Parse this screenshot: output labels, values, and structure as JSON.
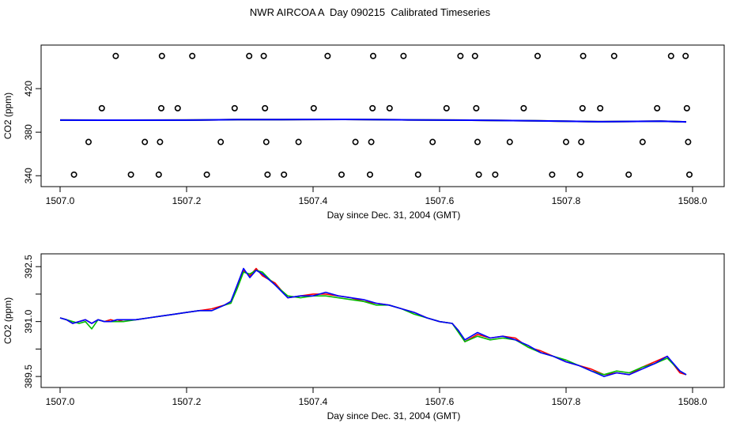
{
  "figure_title": "NWR AIRCOA A  Day 090215  Calibrated Timeseries",
  "chart_data": [
    {
      "type": "scatter+line",
      "xlabel": "Day since Dec. 31, 2004 (GMT)",
      "ylabel": "CO2 (ppm)",
      "xlim": [
        1506.97,
        1508.05
      ],
      "ylim": [
        330,
        460
      ],
      "x_ticks": [
        "1507.0",
        "1507.2",
        "1507.4",
        "1507.6",
        "1507.8",
        "1508.0"
      ],
      "x_tick_values": [
        1507.0,
        1507.2,
        1507.4,
        1507.6,
        1507.8,
        1508.0
      ],
      "y_ticks": [
        "340",
        "380",
        "420"
      ],
      "y_tick_values": [
        340,
        380,
        420
      ],
      "grid": false,
      "marker_color": "#000000",
      "points": [
        {
          "x": 1507.022,
          "y": 341
        },
        {
          "x": 1507.045,
          "y": 371
        },
        {
          "x": 1507.066,
          "y": 402
        },
        {
          "x": 1507.088,
          "y": 450
        },
        {
          "x": 1507.112,
          "y": 341
        },
        {
          "x": 1507.134,
          "y": 371
        },
        {
          "x": 1507.156,
          "y": 341
        },
        {
          "x": 1507.158,
          "y": 371
        },
        {
          "x": 1507.16,
          "y": 402
        },
        {
          "x": 1507.161,
          "y": 450
        },
        {
          "x": 1507.186,
          "y": 402
        },
        {
          "x": 1507.209,
          "y": 450
        },
        {
          "x": 1507.232,
          "y": 341
        },
        {
          "x": 1507.254,
          "y": 371
        },
        {
          "x": 1507.276,
          "y": 402
        },
        {
          "x": 1507.299,
          "y": 450
        },
        {
          "x": 1507.322,
          "y": 450
        },
        {
          "x": 1507.324,
          "y": 402
        },
        {
          "x": 1507.326,
          "y": 371
        },
        {
          "x": 1507.328,
          "y": 341
        },
        {
          "x": 1507.354,
          "y": 341
        },
        {
          "x": 1507.377,
          "y": 371
        },
        {
          "x": 1507.401,
          "y": 402
        },
        {
          "x": 1507.423,
          "y": 450
        },
        {
          "x": 1507.445,
          "y": 341
        },
        {
          "x": 1507.467,
          "y": 371
        },
        {
          "x": 1507.49,
          "y": 341
        },
        {
          "x": 1507.492,
          "y": 371
        },
        {
          "x": 1507.494,
          "y": 402
        },
        {
          "x": 1507.495,
          "y": 450
        },
        {
          "x": 1507.521,
          "y": 402
        },
        {
          "x": 1507.543,
          "y": 450
        },
        {
          "x": 1507.566,
          "y": 341
        },
        {
          "x": 1507.589,
          "y": 371
        },
        {
          "x": 1507.611,
          "y": 402
        },
        {
          "x": 1507.633,
          "y": 450
        },
        {
          "x": 1507.656,
          "y": 450
        },
        {
          "x": 1507.658,
          "y": 402
        },
        {
          "x": 1507.66,
          "y": 371
        },
        {
          "x": 1507.662,
          "y": 341
        },
        {
          "x": 1507.688,
          "y": 341
        },
        {
          "x": 1507.711,
          "y": 371
        },
        {
          "x": 1507.733,
          "y": 402
        },
        {
          "x": 1507.755,
          "y": 450
        },
        {
          "x": 1507.778,
          "y": 341
        },
        {
          "x": 1507.8,
          "y": 371
        },
        {
          "x": 1507.822,
          "y": 341
        },
        {
          "x": 1507.824,
          "y": 371
        },
        {
          "x": 1507.826,
          "y": 402
        },
        {
          "x": 1507.827,
          "y": 450
        },
        {
          "x": 1507.854,
          "y": 402
        },
        {
          "x": 1507.876,
          "y": 450
        },
        {
          "x": 1507.899,
          "y": 341
        },
        {
          "x": 1507.921,
          "y": 371
        },
        {
          "x": 1507.944,
          "y": 402
        },
        {
          "x": 1507.966,
          "y": 450
        },
        {
          "x": 1507.989,
          "y": 450
        },
        {
          "x": 1507.991,
          "y": 402
        },
        {
          "x": 1507.993,
          "y": 371
        },
        {
          "x": 1507.995,
          "y": 341
        }
      ],
      "series": [
        {
          "color": "#ff0000",
          "x": [
            1507.0,
            1507.1,
            1507.2,
            1507.28,
            1507.35,
            1507.45,
            1507.55,
            1507.65,
            1507.75,
            1507.85,
            1507.95,
            1507.99
          ],
          "y": [
            391.1,
            391.0,
            391.1,
            391.5,
            391.6,
            391.7,
            391.3,
            391.0,
            390.4,
            389.6,
            390.1,
            389.5
          ]
        },
        {
          "color": "#00cc00",
          "x": [
            1507.0,
            1507.1,
            1507.2,
            1507.28,
            1507.35,
            1507.45,
            1507.55,
            1507.65,
            1507.75,
            1507.85,
            1507.95,
            1507.99
          ],
          "y": [
            391.1,
            391.0,
            391.1,
            391.5,
            391.6,
            391.7,
            391.3,
            391.0,
            390.4,
            389.6,
            390.1,
            389.5
          ]
        },
        {
          "color": "#0000ff",
          "x": [
            1507.0,
            1507.1,
            1507.2,
            1507.28,
            1507.35,
            1507.45,
            1507.55,
            1507.65,
            1507.75,
            1507.85,
            1507.95,
            1507.99
          ],
          "y": [
            391.1,
            391.0,
            391.1,
            391.5,
            391.6,
            391.7,
            391.3,
            391.0,
            390.4,
            389.6,
            390.1,
            389.5
          ]
        }
      ]
    },
    {
      "type": "line",
      "xlabel": "Day since Dec. 31, 2004 (GMT)",
      "ylabel": "CO2 (ppm)",
      "xlim": [
        1506.97,
        1508.05
      ],
      "ylim": [
        389.2,
        392.85
      ],
      "x_ticks": [
        "1507.0",
        "1507.2",
        "1507.4",
        "1507.6",
        "1507.8",
        "1508.0"
      ],
      "x_tick_values": [
        1507.0,
        1507.2,
        1507.4,
        1507.6,
        1507.8,
        1508.0
      ],
      "y_ticks": [
        "389.5",
        "391.0",
        "392.5"
      ],
      "y_tick_values": [
        389.5,
        391.0,
        392.5
      ],
      "minor_y_ticks": [
        390.25,
        391.75
      ],
      "grid": false,
      "series": [
        {
          "color": "#ff0000",
          "x": [
            1507.0,
            1507.01,
            1507.02,
            1507.03,
            1507.04,
            1507.05,
            1507.06,
            1507.07,
            1507.08,
            1507.09,
            1507.1,
            1507.12,
            1507.14,
            1507.16,
            1507.18,
            1507.2,
            1507.22,
            1507.24,
            1507.26,
            1507.27,
            1507.28,
            1507.29,
            1507.3,
            1507.31,
            1507.32,
            1507.34,
            1507.36,
            1507.38,
            1507.4,
            1507.42,
            1507.44,
            1507.46,
            1507.48,
            1507.5,
            1507.52,
            1507.54,
            1507.56,
            1507.58,
            1507.6,
            1507.62,
            1507.63,
            1507.64,
            1507.66,
            1507.68,
            1507.7,
            1507.72,
            1507.74,
            1507.76,
            1507.78,
            1507.8,
            1507.82,
            1507.84,
            1507.86,
            1507.88,
            1507.9,
            1507.92,
            1507.94,
            1507.96,
            1507.98,
            1507.99
          ],
          "y": [
            391.1,
            391.05,
            390.95,
            391.0,
            391.05,
            390.95,
            391.05,
            391.0,
            391.05,
            391.0,
            391.05,
            391.05,
            391.1,
            391.15,
            391.2,
            391.25,
            391.3,
            391.35,
            391.45,
            391.55,
            391.95,
            392.4,
            392.25,
            392.45,
            392.25,
            392.05,
            391.65,
            391.7,
            391.75,
            391.75,
            391.7,
            391.65,
            391.55,
            391.5,
            391.45,
            391.35,
            391.25,
            391.1,
            391.0,
            390.95,
            390.75,
            390.45,
            390.65,
            390.55,
            390.6,
            390.55,
            390.3,
            390.2,
            390.05,
            389.9,
            389.8,
            389.7,
            389.55,
            389.6,
            389.55,
            389.75,
            389.9,
            390.05,
            389.6,
            389.55
          ]
        },
        {
          "color": "#00bb00",
          "x": [
            1507.0,
            1507.01,
            1507.02,
            1507.03,
            1507.04,
            1507.05,
            1507.06,
            1507.07,
            1507.08,
            1507.09,
            1507.1,
            1507.12,
            1507.14,
            1507.16,
            1507.18,
            1507.2,
            1507.22,
            1507.24,
            1507.26,
            1507.27,
            1507.28,
            1507.29,
            1507.3,
            1507.31,
            1507.32,
            1507.34,
            1507.36,
            1507.38,
            1507.4,
            1507.42,
            1507.44,
            1507.46,
            1507.48,
            1507.5,
            1507.52,
            1507.54,
            1507.56,
            1507.58,
            1507.6,
            1507.62,
            1507.63,
            1507.64,
            1507.66,
            1507.68,
            1507.7,
            1507.72,
            1507.74,
            1507.76,
            1507.78,
            1507.8,
            1507.82,
            1507.84,
            1507.86,
            1507.88,
            1507.9,
            1507.92,
            1507.94,
            1507.96,
            1507.98,
            1507.99
          ],
          "y": [
            391.1,
            391.05,
            391.0,
            390.95,
            391.0,
            390.8,
            391.05,
            391.0,
            391.0,
            391.0,
            391.0,
            391.05,
            391.1,
            391.15,
            391.2,
            391.25,
            391.3,
            391.3,
            391.45,
            391.5,
            391.9,
            392.35,
            392.3,
            392.4,
            392.35,
            392.0,
            391.7,
            391.65,
            391.7,
            391.7,
            391.65,
            391.6,
            391.55,
            391.45,
            391.45,
            391.35,
            391.2,
            391.1,
            391.0,
            390.95,
            390.7,
            390.45,
            390.6,
            390.5,
            390.55,
            390.5,
            390.3,
            390.15,
            390.05,
            389.95,
            389.8,
            389.65,
            389.55,
            389.65,
            389.6,
            389.75,
            389.85,
            390.0,
            389.65,
            389.55
          ]
        },
        {
          "color": "#0000ff",
          "x": [
            1507.0,
            1507.01,
            1507.02,
            1507.03,
            1507.04,
            1507.05,
            1507.06,
            1507.07,
            1507.08,
            1507.09,
            1507.1,
            1507.12,
            1507.14,
            1507.16,
            1507.18,
            1507.2,
            1507.22,
            1507.24,
            1507.26,
            1507.27,
            1507.28,
            1507.29,
            1507.3,
            1507.31,
            1507.32,
            1507.34,
            1507.36,
            1507.38,
            1507.4,
            1507.42,
            1507.44,
            1507.46,
            1507.48,
            1507.5,
            1507.52,
            1507.54,
            1507.56,
            1507.58,
            1507.6,
            1507.62,
            1507.63,
            1507.64,
            1507.66,
            1507.68,
            1507.7,
            1507.72,
            1507.74,
            1507.76,
            1507.78,
            1507.8,
            1507.82,
            1507.84,
            1507.86,
            1507.88,
            1507.9,
            1507.92,
            1507.94,
            1507.96,
            1507.98,
            1507.99
          ],
          "y": [
            391.1,
            391.05,
            390.95,
            391.0,
            391.05,
            390.95,
            391.05,
            391.0,
            391.0,
            391.05,
            391.05,
            391.05,
            391.1,
            391.15,
            391.2,
            391.25,
            391.3,
            391.3,
            391.45,
            391.55,
            392.0,
            392.45,
            392.2,
            392.4,
            392.3,
            392.0,
            391.65,
            391.7,
            391.7,
            391.8,
            391.7,
            391.65,
            391.6,
            391.5,
            391.45,
            391.35,
            391.25,
            391.1,
            391.0,
            390.95,
            390.75,
            390.5,
            390.7,
            390.55,
            390.6,
            390.5,
            390.35,
            390.15,
            390.05,
            389.9,
            389.8,
            389.65,
            389.5,
            389.6,
            389.55,
            389.7,
            389.85,
            390.05,
            389.65,
            389.55
          ]
        }
      ]
    }
  ]
}
